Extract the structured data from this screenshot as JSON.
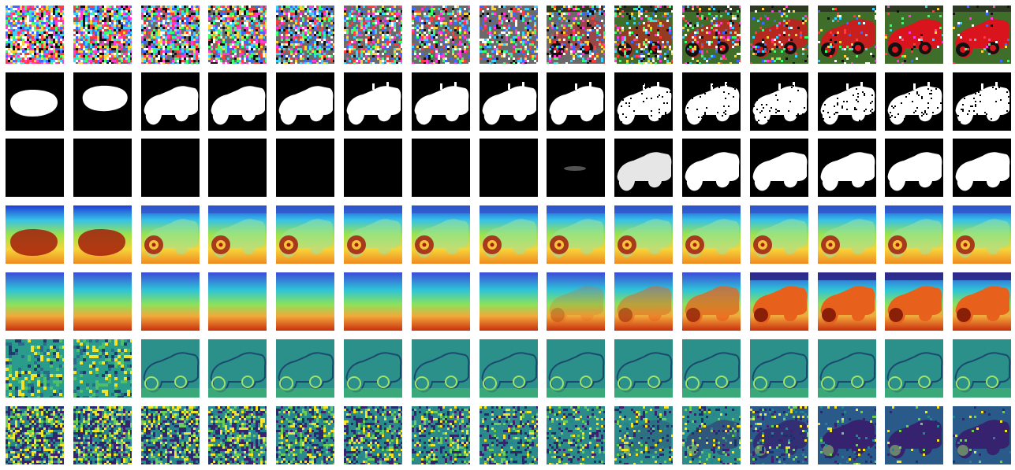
{
  "figure": {
    "rows": [
      {
        "kind": "rgb-denoising",
        "colormap": "rgb"
      },
      {
        "kind": "binary-mask",
        "colormap": "gray"
      },
      {
        "kind": "soft-mask",
        "colormap": "gray"
      },
      {
        "kind": "heatmap-jet",
        "colormap": "jet"
      },
      {
        "kind": "depth-turbo",
        "colormap": "turbo"
      },
      {
        "kind": "feature-viridis",
        "colormap": "viridis"
      },
      {
        "kind": "noise-viridis",
        "colormap": "viridis"
      }
    ],
    "steps": 15,
    "colors": {
      "car_red": "#d9141c",
      "grass_green": "#3f6d2a",
      "mask_white": "#ffffff",
      "mask_black": "#000000",
      "jet_blue": "#1f3bd6",
      "jet_red": "#a51d0c",
      "viridis_teal": "#2a9c8c",
      "viridis_yellow": "#f3e32a",
      "viridis_purple": "#3d1b6a"
    }
  }
}
